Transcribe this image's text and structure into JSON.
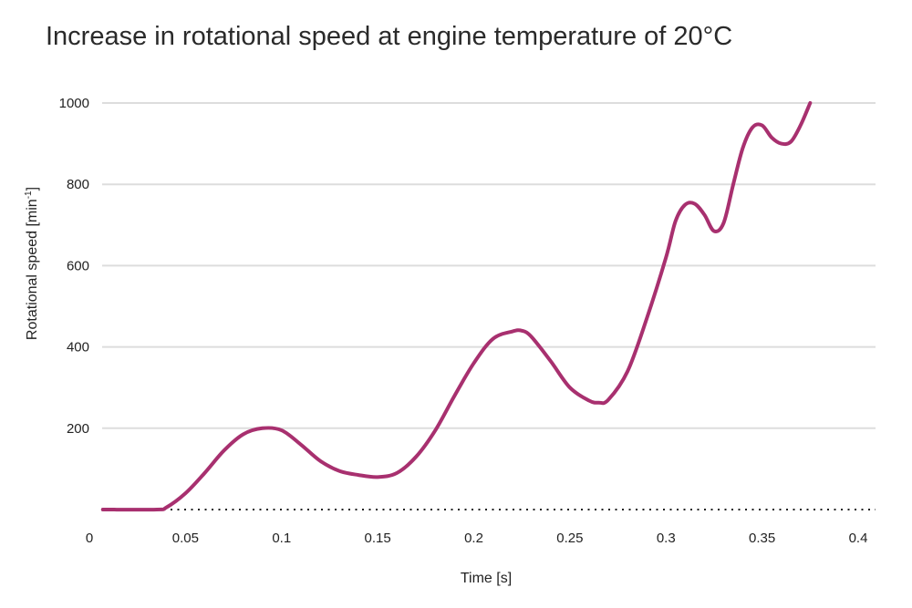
{
  "chart_data": {
    "type": "line",
    "title": "Increase in rotational speed at engine temperature of 20°C",
    "xlabel": "Time [s]",
    "ylabel_main": "Rotational speed [min",
    "ylabel_sup": "-1",
    "ylabel_close": "]",
    "xlim": [
      0,
      0.4
    ],
    "ylim": [
      0,
      1000
    ],
    "x_ticks": [
      0,
      0.05,
      0.1,
      0.15,
      0.2,
      0.25,
      0.3,
      0.35,
      0.4
    ],
    "x_tick_labels": [
      "0",
      "0.05",
      "0.1",
      "0.15",
      "0.2",
      "0.25",
      "0.3",
      "0.35",
      "0.4"
    ],
    "y_ticks": [
      200,
      400,
      600,
      800,
      1000
    ],
    "y_tick_labels": [
      "200",
      "400",
      "600",
      "800",
      "1000"
    ],
    "grid": "horizontal",
    "series": [
      {
        "color": "#a8306f",
        "x": [
          0.007,
          0.035,
          0.04,
          0.05,
          0.06,
          0.07,
          0.08,
          0.09,
          0.1,
          0.11,
          0.12,
          0.13,
          0.14,
          0.15,
          0.16,
          0.17,
          0.18,
          0.19,
          0.2,
          0.21,
          0.22,
          0.225,
          0.23,
          0.24,
          0.25,
          0.26,
          0.265,
          0.27,
          0.28,
          0.29,
          0.3,
          0.305,
          0.31,
          0.315,
          0.32,
          0.325,
          0.33,
          0.335,
          0.34,
          0.345,
          0.35,
          0.355,
          0.36,
          0.365,
          0.37,
          0.375
        ],
        "y": [
          0,
          0,
          5,
          40,
          90,
          145,
          185,
          200,
          195,
          160,
          120,
          95,
          85,
          80,
          90,
          130,
          195,
          280,
          360,
          420,
          438,
          440,
          425,
          365,
          300,
          268,
          263,
          270,
          340,
          470,
          620,
          710,
          750,
          752,
          725,
          685,
          705,
          800,
          890,
          940,
          945,
          915,
          900,
          905,
          945,
          1000
        ]
      }
    ]
  }
}
